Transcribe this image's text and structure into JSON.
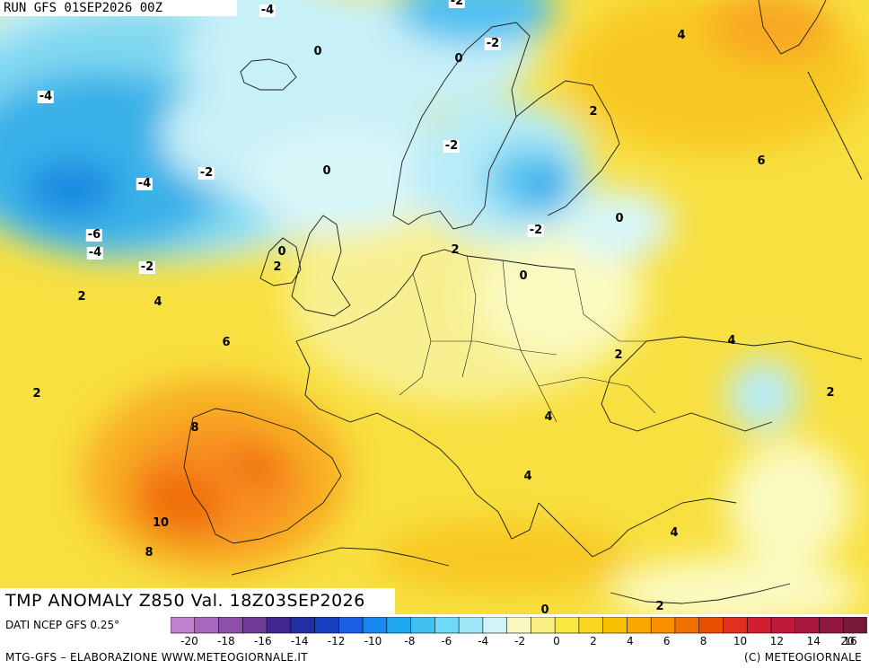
{
  "header": {
    "run": "RUN GFS 01SEP2026 00Z"
  },
  "title": "TMP ANOMALY Z850 Val. 18Z03SEP2026",
  "footer": {
    "source": "DATI NCEP GFS 0.25°",
    "credit_left": "MTG-GFS – ELABORAZIONE WWW.METEOGIORNALE.IT",
    "credit_right": "(C) METEOGIORNALE"
  },
  "legend": {
    "ticks": [
      "-20",
      "-18",
      "-16",
      "-14",
      "-12",
      "-10",
      "-8",
      "-6",
      "-4",
      "-2",
      "0",
      "2",
      "4",
      "6",
      "8",
      "10",
      "12",
      "14",
      "16",
      "20"
    ],
    "colors": [
      "#c080d0",
      "#a868c0",
      "#8c50a8",
      "#703c98",
      "#402890",
      "#2030a0",
      "#1840c0",
      "#1860e0",
      "#1888f0",
      "#20a8f0",
      "#40c0f0",
      "#70d8f8",
      "#a0e8f8",
      "#d0f4f8",
      "#f8f8c0",
      "#f8f080",
      "#f8e840",
      "#f8d820",
      "#f8c000",
      "#f8a800",
      "#f89000",
      "#f07000",
      "#e85000",
      "#e03020",
      "#d02030",
      "#c01838",
      "#a81840",
      "#901840",
      "#781838"
    ]
  },
  "labels": [
    "-4",
    "0",
    "0",
    "0",
    "0",
    "-2",
    "-4",
    "4",
    "2",
    "-4",
    "-2",
    "-4",
    "0",
    "-2",
    "-2",
    "6",
    "-6",
    "-4",
    "-2",
    "0",
    "2",
    "0",
    "2",
    "2",
    "4",
    "6",
    "2",
    "2",
    "4",
    "4",
    "2",
    "8",
    "4",
    "10",
    "8",
    "4",
    "0",
    "2",
    "-2"
  ],
  "icons": {
    "scale": "color-scale-bar"
  }
}
